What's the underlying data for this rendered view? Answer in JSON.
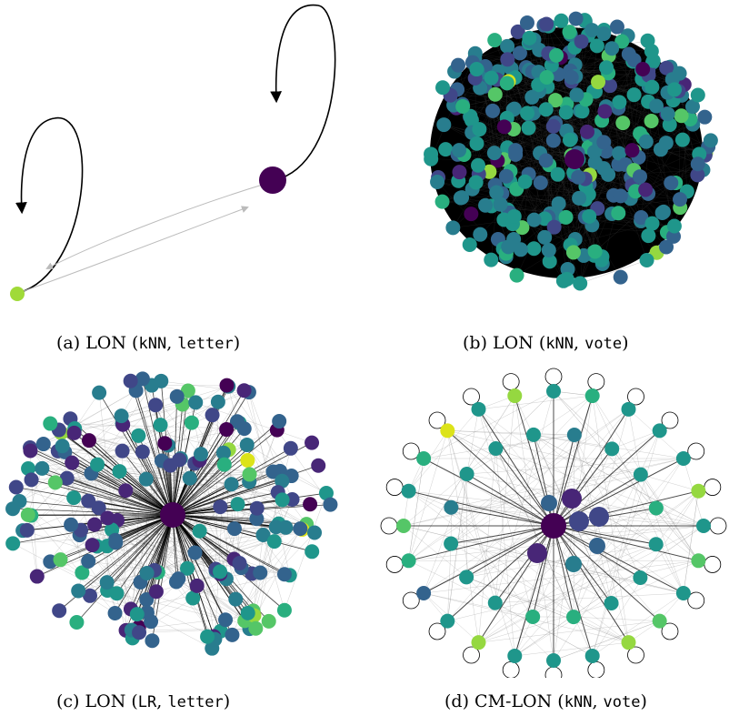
{
  "captions": {
    "a": {
      "pre": "(a) LON (",
      "model": "kNN",
      "sep": ", ",
      "dataset": "letter",
      "post": ")"
    },
    "b": {
      "pre": "(b) LON (",
      "model": "kNN",
      "sep": ", ",
      "dataset": "vote",
      "post": ")"
    },
    "c": {
      "pre": "(c) LON (",
      "model": "LR",
      "sep": ", ",
      "dataset": "letter",
      "post": ")"
    },
    "d": {
      "pre": "(d) CM-LON (",
      "model": "kNN",
      "sep": ", ",
      "dataset": "vote",
      "post": ")"
    }
  },
  "colors": {
    "viridis": [
      "#440154",
      "#482677",
      "#404788",
      "#33638d",
      "#287d8e",
      "#1f968b",
      "#29af7f",
      "#55c667",
      "#95d840",
      "#dce319"
    ],
    "edge_dense": "#000000",
    "edge_light": "#999999"
  }
}
